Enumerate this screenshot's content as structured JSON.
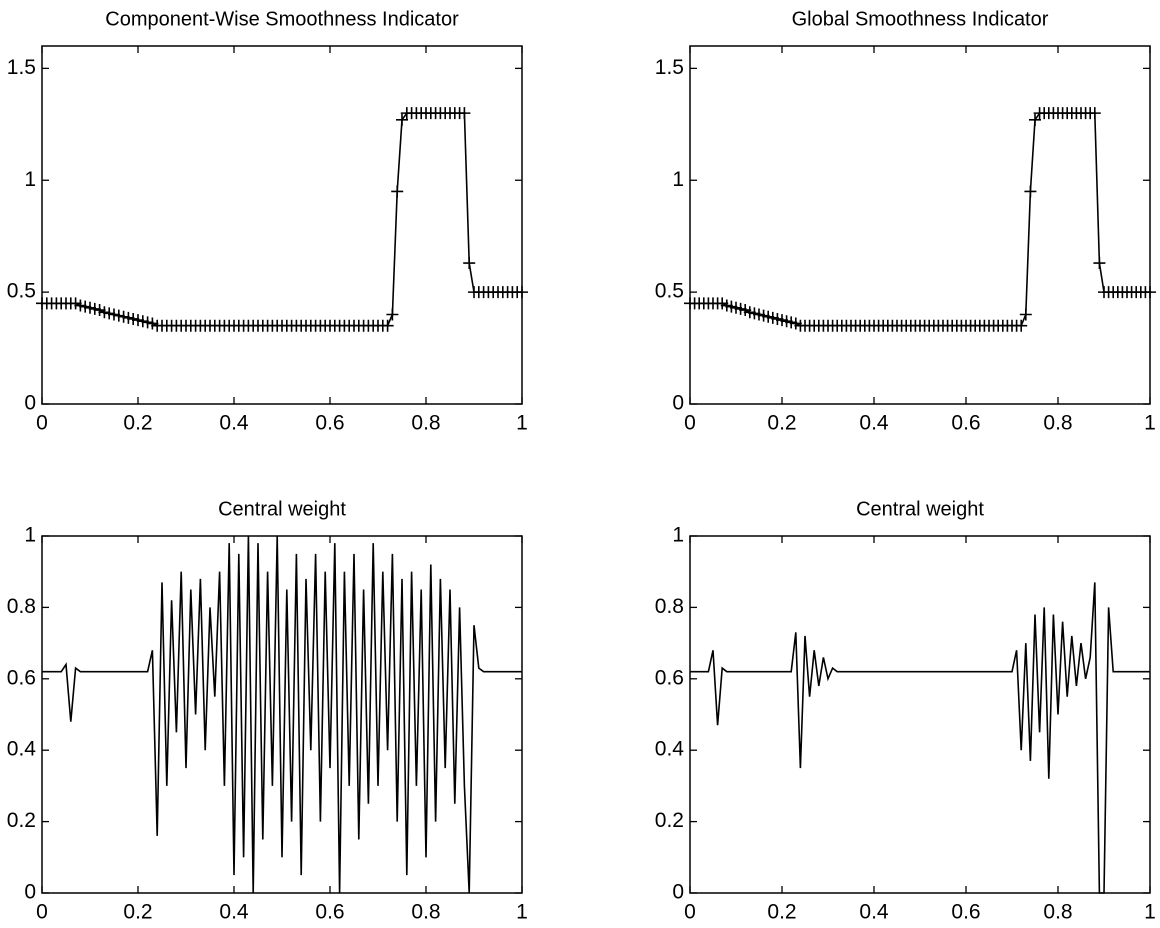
{
  "chart_data": [
    {
      "type": "line",
      "title": "Component-Wise Smoothness Indicator",
      "color": "#000000",
      "marker": "+",
      "x": [
        0,
        0.01,
        0.02,
        0.03,
        0.04,
        0.05,
        0.06,
        0.07,
        0.08,
        0.09,
        0.1,
        0.11,
        0.12,
        0.13,
        0.14,
        0.15,
        0.16,
        0.17,
        0.18,
        0.19,
        0.2,
        0.21,
        0.22,
        0.23,
        0.24,
        0.25,
        0.26,
        0.27,
        0.28,
        0.29,
        0.3,
        0.31,
        0.32,
        0.33,
        0.34,
        0.35,
        0.36,
        0.37,
        0.38,
        0.39,
        0.4,
        0.41,
        0.42,
        0.43,
        0.44,
        0.45,
        0.46,
        0.47,
        0.48,
        0.49,
        0.5,
        0.51,
        0.52,
        0.53,
        0.54,
        0.55,
        0.56,
        0.57,
        0.58,
        0.59,
        0.6,
        0.61,
        0.62,
        0.63,
        0.64,
        0.65,
        0.66,
        0.67,
        0.68,
        0.69,
        0.7,
        0.71,
        0.72,
        0.73,
        0.74,
        0.75,
        0.76,
        0.77,
        0.78,
        0.79,
        0.8,
        0.81,
        0.82,
        0.83,
        0.84,
        0.85,
        0.86,
        0.87,
        0.88,
        0.89,
        0.9,
        0.91,
        0.92,
        0.93,
        0.94,
        0.95,
        0.96,
        0.97,
        0.98,
        0.99,
        1
      ],
      "values": [
        0.45,
        0.45,
        0.45,
        0.45,
        0.45,
        0.45,
        0.45,
        0.45,
        0.44,
        0.435,
        0.43,
        0.425,
        0.42,
        0.41,
        0.405,
        0.4,
        0.395,
        0.39,
        0.385,
        0.38,
        0.375,
        0.37,
        0.365,
        0.36,
        0.35,
        0.35,
        0.35,
        0.35,
        0.35,
        0.35,
        0.35,
        0.35,
        0.35,
        0.35,
        0.35,
        0.35,
        0.35,
        0.35,
        0.35,
        0.35,
        0.35,
        0.35,
        0.35,
        0.35,
        0.35,
        0.35,
        0.35,
        0.35,
        0.35,
        0.35,
        0.35,
        0.35,
        0.35,
        0.35,
        0.35,
        0.35,
        0.35,
        0.35,
        0.35,
        0.35,
        0.35,
        0.35,
        0.35,
        0.35,
        0.35,
        0.35,
        0.35,
        0.35,
        0.35,
        0.35,
        0.35,
        0.35,
        0.35,
        0.4,
        0.95,
        1.27,
        1.3,
        1.3,
        1.3,
        1.3,
        1.3,
        1.3,
        1.3,
        1.3,
        1.3,
        1.3,
        1.3,
        1.3,
        1.3,
        0.63,
        0.5,
        0.5,
        0.5,
        0.5,
        0.5,
        0.5,
        0.5,
        0.5,
        0.5,
        0.5,
        0.5
      ],
      "xlim": [
        0,
        1
      ],
      "xticks": [
        0,
        0.2,
        0.4,
        0.6,
        0.8,
        1
      ],
      "ylim": [
        0,
        1.6
      ],
      "yticks": [
        0,
        0.5,
        1,
        1.5
      ]
    },
    {
      "type": "line",
      "title": "Global Smoothness Indicator",
      "color": "#000000",
      "marker": "+",
      "x": [
        0,
        0.01,
        0.02,
        0.03,
        0.04,
        0.05,
        0.06,
        0.07,
        0.08,
        0.09,
        0.1,
        0.11,
        0.12,
        0.13,
        0.14,
        0.15,
        0.16,
        0.17,
        0.18,
        0.19,
        0.2,
        0.21,
        0.22,
        0.23,
        0.24,
        0.25,
        0.26,
        0.27,
        0.28,
        0.29,
        0.3,
        0.31,
        0.32,
        0.33,
        0.34,
        0.35,
        0.36,
        0.37,
        0.38,
        0.39,
        0.4,
        0.41,
        0.42,
        0.43,
        0.44,
        0.45,
        0.46,
        0.47,
        0.48,
        0.49,
        0.5,
        0.51,
        0.52,
        0.53,
        0.54,
        0.55,
        0.56,
        0.57,
        0.58,
        0.59,
        0.6,
        0.61,
        0.62,
        0.63,
        0.64,
        0.65,
        0.66,
        0.67,
        0.68,
        0.69,
        0.7,
        0.71,
        0.72,
        0.73,
        0.74,
        0.75,
        0.76,
        0.77,
        0.78,
        0.79,
        0.8,
        0.81,
        0.82,
        0.83,
        0.84,
        0.85,
        0.86,
        0.87,
        0.88,
        0.89,
        0.9,
        0.91,
        0.92,
        0.93,
        0.94,
        0.95,
        0.96,
        0.97,
        0.98,
        0.99,
        1
      ],
      "values": [
        0.45,
        0.45,
        0.45,
        0.45,
        0.45,
        0.45,
        0.45,
        0.45,
        0.44,
        0.435,
        0.43,
        0.425,
        0.42,
        0.41,
        0.405,
        0.4,
        0.395,
        0.39,
        0.385,
        0.38,
        0.375,
        0.37,
        0.365,
        0.36,
        0.35,
        0.35,
        0.35,
        0.35,
        0.35,
        0.35,
        0.35,
        0.35,
        0.35,
        0.35,
        0.35,
        0.35,
        0.35,
        0.35,
        0.35,
        0.35,
        0.35,
        0.35,
        0.35,
        0.35,
        0.35,
        0.35,
        0.35,
        0.35,
        0.35,
        0.35,
        0.35,
        0.35,
        0.35,
        0.35,
        0.35,
        0.35,
        0.35,
        0.35,
        0.35,
        0.35,
        0.35,
        0.35,
        0.35,
        0.35,
        0.35,
        0.35,
        0.35,
        0.35,
        0.35,
        0.35,
        0.35,
        0.35,
        0.35,
        0.4,
        0.95,
        1.27,
        1.3,
        1.3,
        1.3,
        1.3,
        1.3,
        1.3,
        1.3,
        1.3,
        1.3,
        1.3,
        1.3,
        1.3,
        1.3,
        0.63,
        0.5,
        0.5,
        0.5,
        0.5,
        0.5,
        0.5,
        0.5,
        0.5,
        0.5,
        0.5,
        0.5
      ],
      "xlim": [
        0,
        1
      ],
      "xticks": [
        0,
        0.2,
        0.4,
        0.6,
        0.8,
        1
      ],
      "ylim": [
        0,
        1.6
      ],
      "yticks": [
        0,
        0.5,
        1,
        1.5
      ]
    },
    {
      "type": "line",
      "title": "Central weight",
      "color": "#000000",
      "x": [
        0,
        0.01,
        0.02,
        0.03,
        0.04,
        0.05,
        0.06,
        0.07,
        0.08,
        0.09,
        0.1,
        0.11,
        0.12,
        0.13,
        0.14,
        0.15,
        0.16,
        0.17,
        0.18,
        0.19,
        0.2,
        0.21,
        0.22,
        0.23,
        0.24,
        0.25,
        0.26,
        0.27,
        0.28,
        0.29,
        0.3,
        0.31,
        0.32,
        0.33,
        0.34,
        0.35,
        0.36,
        0.37,
        0.38,
        0.39,
        0.4,
        0.41,
        0.42,
        0.43,
        0.44,
        0.45,
        0.46,
        0.47,
        0.48,
        0.49,
        0.5,
        0.51,
        0.52,
        0.53,
        0.54,
        0.55,
        0.56,
        0.57,
        0.58,
        0.59,
        0.6,
        0.61,
        0.62,
        0.63,
        0.64,
        0.65,
        0.66,
        0.67,
        0.68,
        0.69,
        0.7,
        0.71,
        0.72,
        0.73,
        0.74,
        0.75,
        0.76,
        0.77,
        0.78,
        0.79,
        0.8,
        0.81,
        0.82,
        0.83,
        0.84,
        0.85,
        0.86,
        0.87,
        0.88,
        0.89,
        0.9,
        0.91,
        0.92,
        0.93,
        0.94,
        0.95,
        0.96,
        0.97,
        0.98,
        0.99,
        1
      ],
      "values": [
        0.62,
        0.62,
        0.62,
        0.62,
        0.62,
        0.64,
        0.48,
        0.63,
        0.62,
        0.62,
        0.62,
        0.62,
        0.62,
        0.62,
        0.62,
        0.62,
        0.62,
        0.62,
        0.62,
        0.62,
        0.62,
        0.62,
        0.62,
        0.68,
        0.16,
        0.87,
        0.3,
        0.82,
        0.45,
        0.9,
        0.35,
        0.85,
        0.5,
        0.88,
        0.4,
        0.8,
        0.55,
        0.9,
        0.3,
        0.98,
        0.05,
        0.95,
        0.1,
        1,
        0,
        0.98,
        0.15,
        0.9,
        0.3,
        1,
        0.1,
        0.85,
        0.2,
        0.95,
        0.05,
        0.88,
        0.4,
        0.95,
        0.2,
        0.9,
        0.35,
        0.98,
        0,
        0.9,
        0.3,
        0.95,
        0.15,
        0.85,
        0.25,
        0.98,
        0.3,
        0.9,
        0.4,
        0.95,
        0.2,
        0.88,
        0.05,
        0.9,
        0.3,
        0.85,
        0.1,
        0.92,
        0.2,
        0.88,
        0.35,
        0.85,
        0.25,
        0.8,
        0.3,
        0,
        0.75,
        0.63,
        0.62,
        0.62,
        0.62,
        0.62,
        0.62,
        0.62,
        0.62,
        0.62,
        0.62
      ],
      "xlim": [
        0,
        1
      ],
      "xticks": [
        0,
        0.2,
        0.4,
        0.6,
        0.8,
        1
      ],
      "ylim": [
        0,
        1
      ],
      "yticks": [
        0,
        0.2,
        0.4,
        0.6,
        0.8,
        1
      ]
    },
    {
      "type": "line",
      "title": "Central weight",
      "color": "#000000",
      "x": [
        0,
        0.01,
        0.02,
        0.03,
        0.04,
        0.05,
        0.06,
        0.07,
        0.08,
        0.09,
        0.1,
        0.11,
        0.12,
        0.13,
        0.14,
        0.15,
        0.16,
        0.17,
        0.18,
        0.19,
        0.2,
        0.21,
        0.22,
        0.23,
        0.24,
        0.25,
        0.26,
        0.27,
        0.28,
        0.29,
        0.3,
        0.31,
        0.32,
        0.33,
        0.34,
        0.35,
        0.36,
        0.37,
        0.38,
        0.39,
        0.4,
        0.41,
        0.42,
        0.43,
        0.44,
        0.45,
        0.46,
        0.47,
        0.48,
        0.49,
        0.5,
        0.51,
        0.52,
        0.53,
        0.54,
        0.55,
        0.56,
        0.57,
        0.58,
        0.59,
        0.6,
        0.61,
        0.62,
        0.63,
        0.64,
        0.65,
        0.66,
        0.67,
        0.68,
        0.69,
        0.7,
        0.71,
        0.72,
        0.73,
        0.74,
        0.75,
        0.76,
        0.77,
        0.78,
        0.79,
        0.8,
        0.81,
        0.82,
        0.83,
        0.84,
        0.85,
        0.86,
        0.87,
        0.88,
        0.89,
        0.9,
        0.91,
        0.92,
        0.93,
        0.94,
        0.95,
        0.96,
        0.97,
        0.98,
        0.99,
        1
      ],
      "values": [
        0.62,
        0.62,
        0.62,
        0.62,
        0.62,
        0.68,
        0.47,
        0.63,
        0.62,
        0.62,
        0.62,
        0.62,
        0.62,
        0.62,
        0.62,
        0.62,
        0.62,
        0.62,
        0.62,
        0.62,
        0.62,
        0.62,
        0.62,
        0.73,
        0.35,
        0.72,
        0.55,
        0.68,
        0.58,
        0.66,
        0.6,
        0.63,
        0.62,
        0.62,
        0.62,
        0.62,
        0.62,
        0.62,
        0.62,
        0.62,
        0.62,
        0.62,
        0.62,
        0.62,
        0.62,
        0.62,
        0.62,
        0.62,
        0.62,
        0.62,
        0.62,
        0.62,
        0.62,
        0.62,
        0.62,
        0.62,
        0.62,
        0.62,
        0.62,
        0.62,
        0.62,
        0.62,
        0.62,
        0.62,
        0.62,
        0.62,
        0.62,
        0.62,
        0.62,
        0.62,
        0.62,
        0.68,
        0.4,
        0.7,
        0.37,
        0.78,
        0.45,
        0.8,
        0.32,
        0.78,
        0.5,
        0.76,
        0.55,
        0.72,
        0.58,
        0.7,
        0.6,
        0.66,
        0.87,
        0,
        0,
        0.8,
        0.62,
        0.62,
        0.62,
        0.62,
        0.62,
        0.62,
        0.62,
        0.62,
        0.62
      ],
      "xlim": [
        0,
        1
      ],
      "xticks": [
        0,
        0.2,
        0.4,
        0.6,
        0.8,
        1
      ],
      "ylim": [
        0,
        1
      ],
      "yticks": [
        0,
        0.2,
        0.4,
        0.6,
        0.8,
        1
      ]
    }
  ]
}
